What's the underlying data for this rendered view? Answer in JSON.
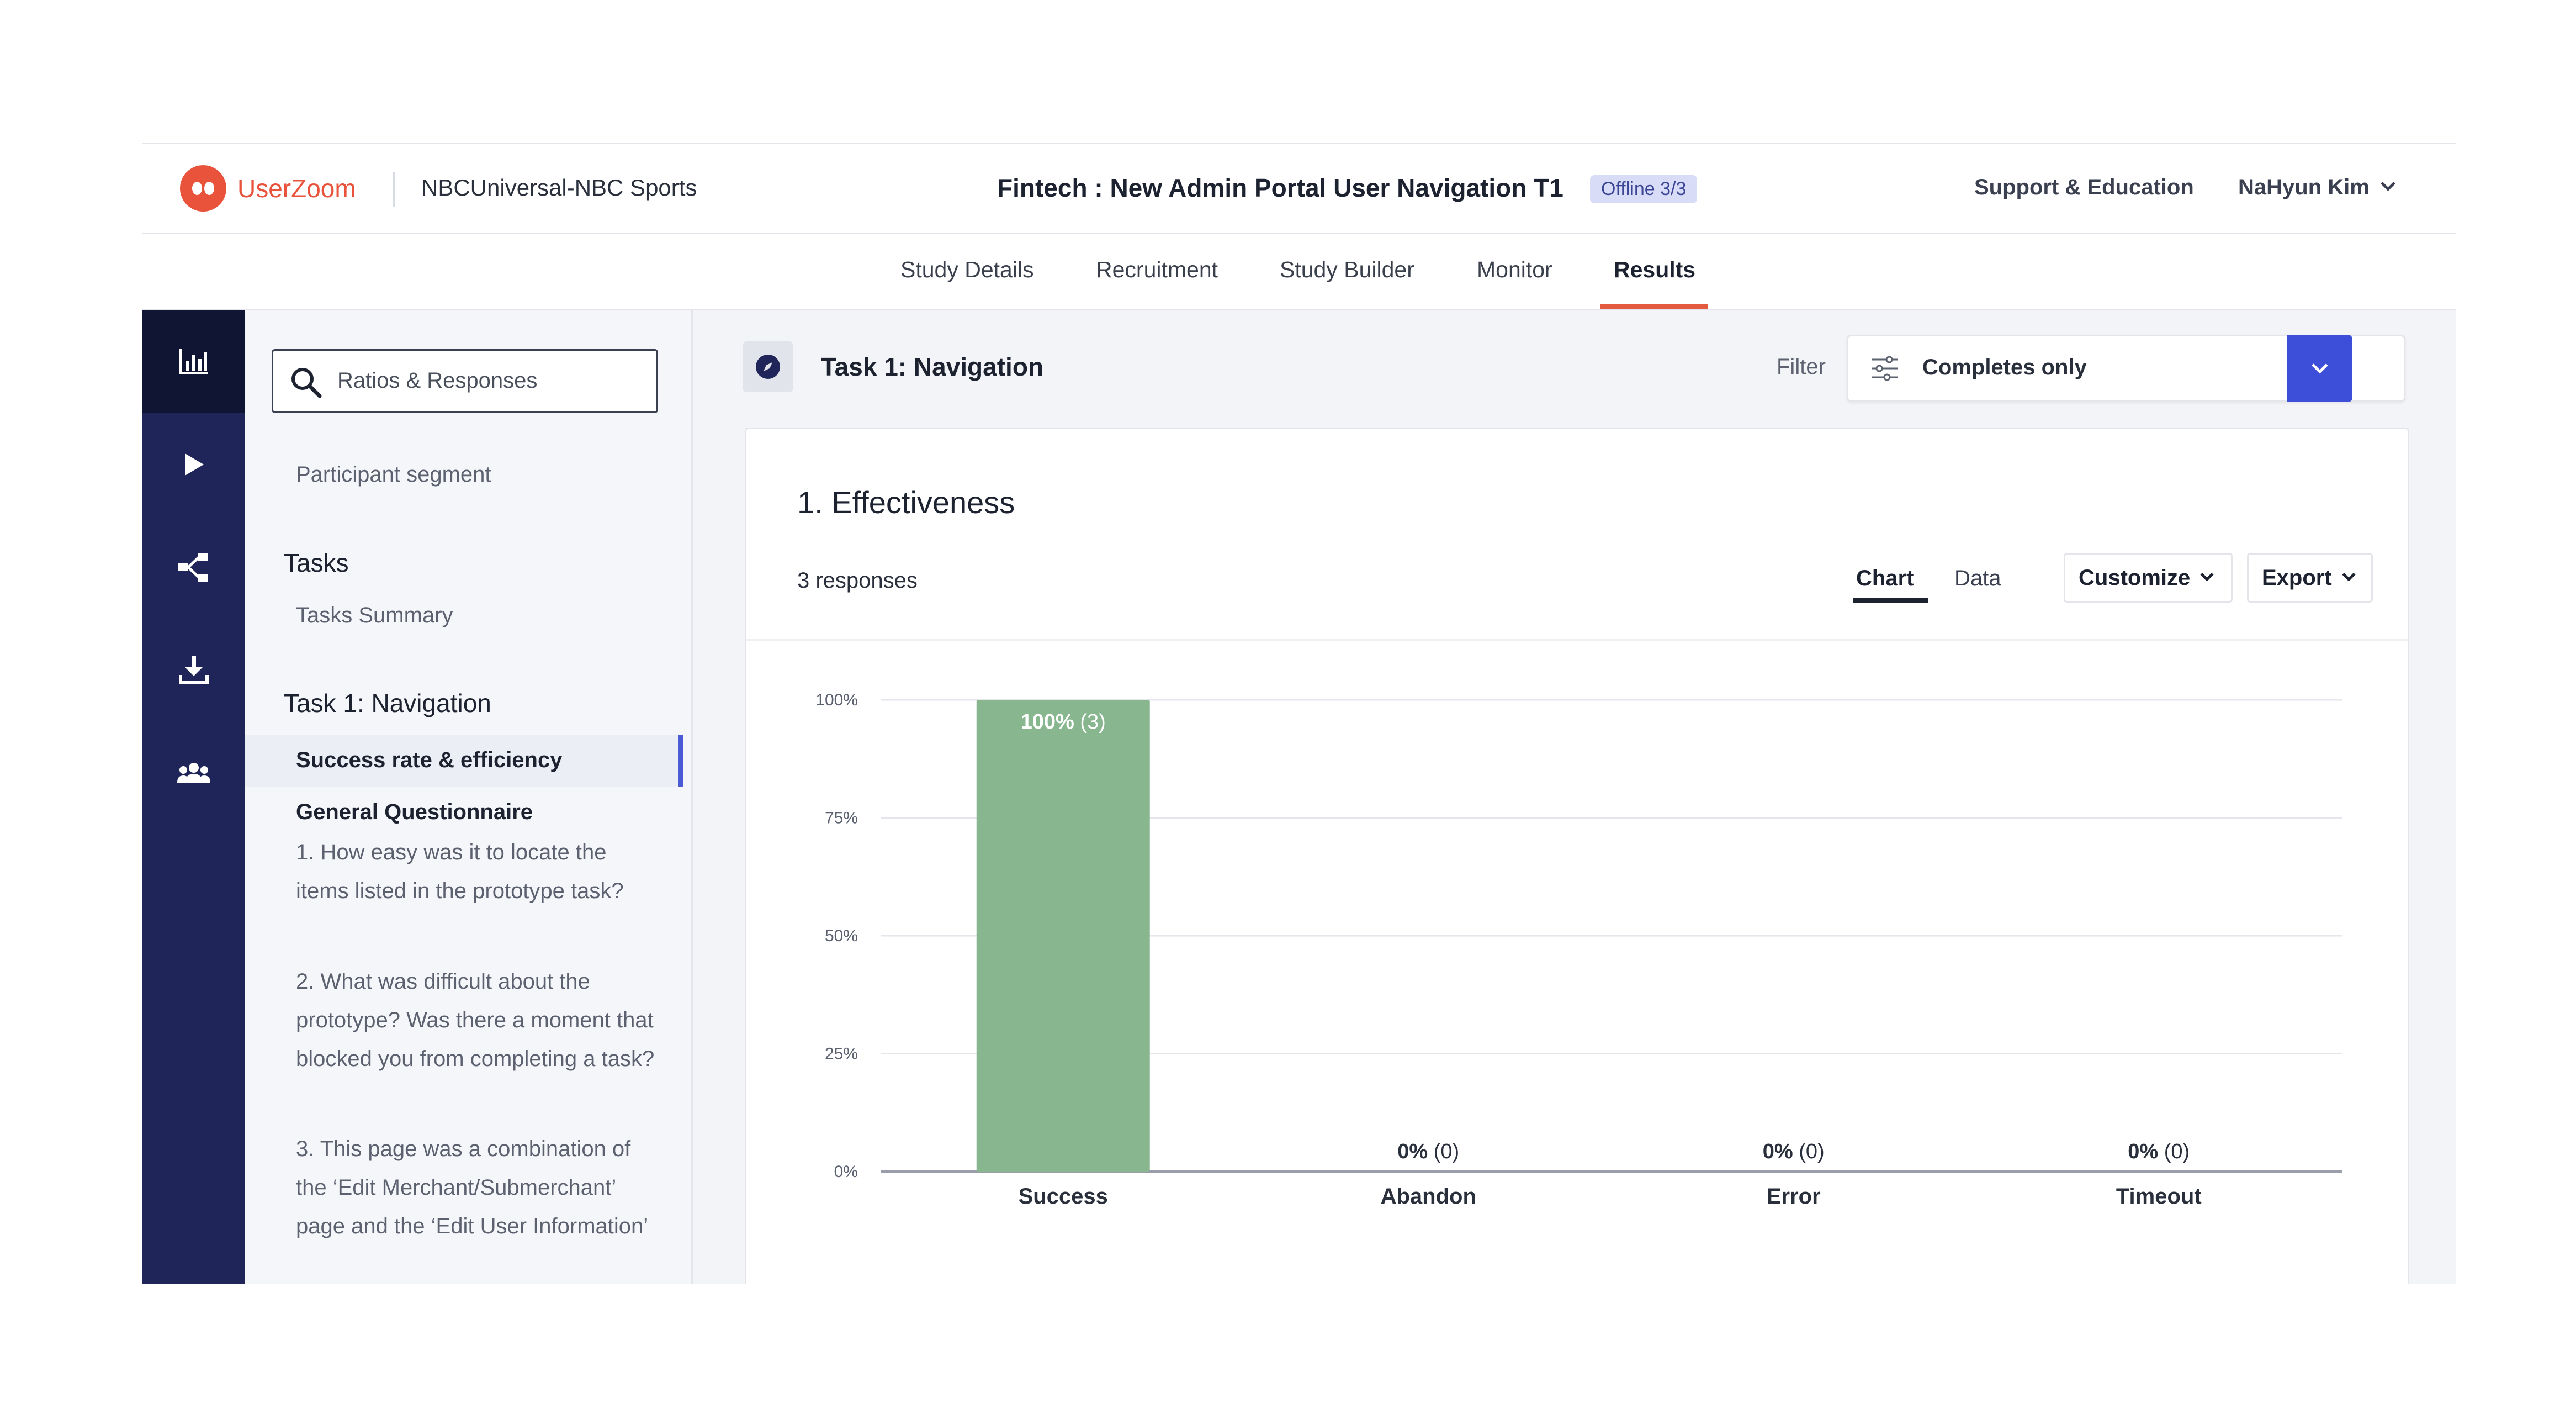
{
  "header": {
    "brand": "UserZoom",
    "org": "NBCUniversal-NBC Sports",
    "study_title": "Fintech : New Admin Portal User Navigation T1",
    "badge": "Offline 3/3",
    "support_label": "Support & Education",
    "user_name": "NaHyun Kim"
  },
  "tabs": [
    {
      "label": "Study Details"
    },
    {
      "label": "Recruitment"
    },
    {
      "label": "Study Builder"
    },
    {
      "label": "Monitor"
    },
    {
      "label": "Results"
    }
  ],
  "active_tab": "Results",
  "rail": {
    "items": [
      "bar-chart-icon",
      "play-icon",
      "share-icon",
      "download-icon",
      "users-icon"
    ],
    "active": "bar-chart-icon"
  },
  "sidenav": {
    "search_text": "Ratios & Responses",
    "participant_segment": "Participant segment",
    "tasks_heading": "Tasks",
    "tasks_summary": "Tasks Summary",
    "task_heading": "Task 1: Navigation",
    "success_rate": "Success rate & efficiency",
    "general_questionnaire": "General Questionnaire",
    "questions": [
      "1. How easy was it to locate the items listed in the prototype task?",
      "2. What was difficult about the prototype? Was there a moment that blocked you from completing a task?",
      "3. This page was a combination of the ‘Edit Merchant/Submerchant’ page and the ‘Edit User Information’"
    ]
  },
  "main": {
    "task_title": "Task 1: Navigation",
    "filter_label": "Filter",
    "filter_value": "Completes only",
    "filter_count": "3",
    "card_title": "1. Effectiveness",
    "responses": "3 responses",
    "view_chart": "Chart",
    "view_data": "Data",
    "customize": "Customize",
    "export": "Export"
  },
  "colors": {
    "brand": "#e9533c",
    "rail": "#1f2559",
    "accent_blue": "#3d4ed8",
    "bar": "#88b68f",
    "tab_underline": "#e45a3f"
  },
  "chart_data": {
    "type": "bar",
    "categories": [
      "Success",
      "Abandon",
      "Error",
      "Timeout"
    ],
    "values": [
      100,
      0,
      0,
      0
    ],
    "counts": [
      3,
      0,
      0,
      0
    ],
    "value_labels": [
      "100%",
      "0%",
      "0%",
      "0%"
    ],
    "count_labels": [
      "(3)",
      "(0)",
      "(0)",
      "(0)"
    ],
    "ylim": [
      0,
      100
    ],
    "yticks": [
      "0%",
      "25%",
      "50%",
      "75%",
      "100%"
    ],
    "grid": true,
    "xlabel": "",
    "ylabel": ""
  }
}
